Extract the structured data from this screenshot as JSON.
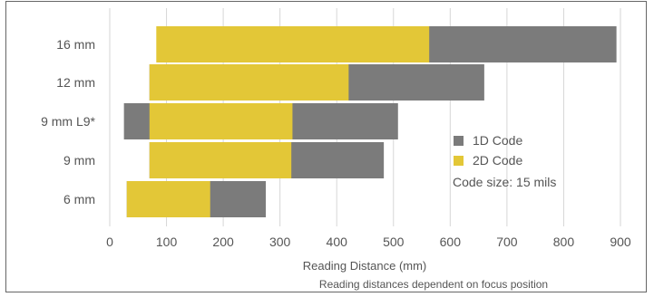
{
  "chart_data": {
    "type": "bar",
    "orientation": "horizontal",
    "stacked": "overlapping-ranges",
    "title": "",
    "xlabel": "Reading Distance (mm)",
    "caption": "Reading distances dependent on focus position",
    "xlim": [
      0,
      900
    ],
    "xticks": [
      0,
      100,
      200,
      300,
      400,
      500,
      600,
      700,
      800,
      900
    ],
    "categories": [
      "16 mm",
      "12 mm",
      "9 mm L9*",
      "9 mm",
      "6 mm"
    ],
    "series": [
      {
        "name": "1D Code",
        "color": "#7b7b7b",
        "ranges": [
          [
            85,
            893
          ],
          [
            70,
            660
          ],
          [
            25,
            508
          ],
          [
            70,
            483
          ],
          [
            30,
            275
          ]
        ]
      },
      {
        "name": "2D Code",
        "color": "#e3c737",
        "ranges": [
          [
            82,
            563
          ],
          [
            70,
            421
          ],
          [
            70,
            322
          ],
          [
            70,
            320
          ],
          [
            30,
            177
          ]
        ]
      }
    ],
    "note": "Code size: 15 mils",
    "grid": "vertical",
    "legend_position": "right"
  }
}
